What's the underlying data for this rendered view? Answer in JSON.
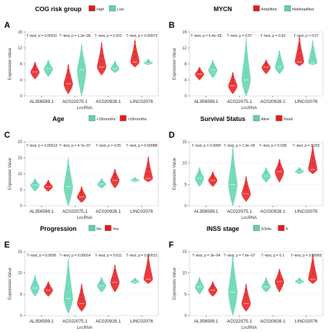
{
  "colors": {
    "red": "#e41a1c",
    "teal": "#5fd3b0",
    "axis": "#333333",
    "grid": "#eeeeee"
  },
  "chart_data": [
    {
      "type": "violin",
      "letter": "A",
      "title": "COG risk group",
      "legend": [
        "High",
        "Low"
      ],
      "xlabel": "LncRNA",
      "ylabel": "Expression Value",
      "ylim": [
        0,
        16
      ],
      "yticks": [
        0,
        4,
        8,
        12,
        16
      ],
      "categories": [
        "AL356599.1",
        "AC022075.1",
        "AC020928.1",
        "LINC02076"
      ],
      "annotations": [
        "T−test, p = 0.00011",
        "T−test, p = 1.3e−06",
        "T−test, p = 0.022",
        "T−test, p = 0.00073"
      ],
      "series": [
        {
          "name": "High",
          "medians": [
            6.0,
            3.0,
            7.2,
            8.5
          ],
          "low": [
            4.2,
            0.5,
            5.2,
            7.2
          ],
          "high": [
            8.5,
            8.0,
            13.5,
            14.2
          ]
        },
        {
          "name": "Low",
          "medians": [
            6.8,
            6.5,
            6.8,
            8.2
          ],
          "low": [
            4.8,
            0.0,
            5.8,
            7.8
          ],
          "high": [
            9.0,
            13.0,
            8.8,
            9.2
          ]
        }
      ]
    },
    {
      "type": "violin",
      "letter": "B",
      "title": "MYCN",
      "legend": [
        "Amplified",
        "NotAmplified"
      ],
      "xlabel": "LncRNA",
      "ylabel": "Expression Value",
      "ylim": [
        0,
        16
      ],
      "yticks": [
        0,
        4,
        8,
        12,
        16
      ],
      "categories": [
        "AL356599.1",
        "AC022075.1",
        "AC020928.1",
        "LINC02076"
      ],
      "annotations": [
        "T−test, p = 6.4e−05",
        "T−test, p = 0.57",
        "T−test, p = 0.93",
        "T−test, p = 0.57"
      ],
      "series": [
        {
          "name": "Amplified",
          "medians": [
            5.5,
            2.5,
            7.2,
            8.5
          ],
          "low": [
            4.0,
            0.5,
            5.5,
            7.5
          ],
          "high": [
            7.2,
            6.0,
            9.0,
            15.0
          ]
        },
        {
          "name": "NotAmplified",
          "medians": [
            6.5,
            4.0,
            7.2,
            8.2
          ],
          "low": [
            4.5,
            0.0,
            5.5,
            7.8
          ],
          "high": [
            9.0,
            14.5,
            11.5,
            14.0
          ]
        }
      ]
    },
    {
      "type": "violin",
      "letter": "C",
      "title": "Age",
      "legend": [
        "<18months",
        ">18months"
      ],
      "xlabel": "LncRNA",
      "ylabel": "Expression Value",
      "ylim": [
        0,
        20
      ],
      "yticks": [
        0,
        5,
        10,
        15,
        20
      ],
      "categories": [
        "AL356599.1",
        "AC022075.1",
        "AC020928.1",
        "LINC02076"
      ],
      "annotations": [
        "T−test, p = 0.00013",
        "T−test, p = 4.7e−07",
        "T−test, p = 0.05",
        "T−test, p = 0.00088"
      ],
      "series": [
        {
          "name": "<18months",
          "medians": [
            6.5,
            6.0,
            6.8,
            8.0
          ],
          "low": [
            4.5,
            0.0,
            5.5,
            7.5
          ],
          "high": [
            8.5,
            15.0,
            8.5,
            8.8
          ]
        },
        {
          "name": ">18months",
          "medians": [
            6.0,
            2.8,
            8.0,
            8.5
          ],
          "low": [
            4.5,
            1.0,
            5.5,
            7.5
          ],
          "high": [
            8.0,
            6.0,
            11.5,
            15.5
          ]
        }
      ]
    },
    {
      "type": "violin",
      "letter": "D",
      "title": "Survival Status",
      "legend": [
        "Alive",
        "Dead"
      ],
      "xlabel": "LncRNA",
      "ylabel": "Expression Value",
      "ylim": [
        0,
        15
      ],
      "yticks": [
        0,
        5,
        10,
        15
      ],
      "categories": [
        "AL356599.1",
        "AC022075.1",
        "AC020928.1",
        "LINC02076"
      ],
      "annotations": [
        "T−test, p = 0.0058",
        "T−test, p = 1.3e−05",
        "T−test, p = 0.038",
        "T−test, p = 0.002"
      ],
      "series": [
        {
          "name": "Alive",
          "medians": [
            6.5,
            5.0,
            7.0,
            8.0
          ],
          "low": [
            4.5,
            0.0,
            5.5,
            7.5
          ],
          "high": [
            9.0,
            14.0,
            9.0,
            9.0
          ]
        },
        {
          "name": "Dead",
          "medians": [
            6.0,
            2.8,
            8.0,
            8.5
          ],
          "low": [
            4.5,
            1.0,
            5.5,
            7.5
          ],
          "high": [
            8.0,
            7.0,
            11.0,
            14.5
          ]
        }
      ]
    },
    {
      "type": "violin",
      "letter": "E",
      "title": "Progression",
      "legend": [
        "No",
        "Yes"
      ],
      "xlabel": "LncRNA",
      "ylabel": "Expression Value",
      "ylim": [
        0,
        15
      ],
      "yticks": [
        0,
        5,
        10,
        15
      ],
      "categories": [
        "AL356599.1",
        "AC022075.1",
        "AC020928.1",
        "LINC02076"
      ],
      "annotations": [
        "T−test, p = 0.0036",
        "T−test, p = 0.00014",
        "T−test, p = 0.011",
        "T−test, p = 0.00012"
      ],
      "series": [
        {
          "name": "No",
          "medians": [
            6.5,
            4.0,
            7.0,
            8.0
          ],
          "low": [
            4.5,
            0.5,
            5.5,
            7.5
          ],
          "high": [
            9.5,
            13.5,
            9.0,
            8.8
          ]
        },
        {
          "name": "Yes",
          "medians": [
            6.0,
            2.8,
            7.8,
            8.5
          ],
          "low": [
            4.5,
            1.0,
            5.5,
            7.5
          ],
          "high": [
            8.0,
            7.5,
            12.0,
            14.5
          ]
        }
      ]
    },
    {
      "type": "violin",
      "letter": "F",
      "title": "INSS stage",
      "legend": [
        "2/3/4s",
        "4"
      ],
      "xlabel": "LncRNA",
      "ylabel": "Expression Value",
      "ylim": [
        0,
        15
      ],
      "yticks": [
        0,
        5,
        10,
        15
      ],
      "categories": [
        "AL356599.1",
        "AC022075.1",
        "AC020928.1",
        "LINC02076"
      ],
      "annotations": [
        "T−test, p = 3e−04",
        "T−test, p = 7.6e−07",
        "T−test, p = 0.1",
        "T−test, p = 0.00065"
      ],
      "series": [
        {
          "name": "2/3/4s",
          "medians": [
            6.8,
            5.5,
            6.8,
            8.0
          ],
          "low": [
            5.0,
            0.0,
            5.5,
            7.5
          ],
          "high": [
            9.0,
            14.5,
            9.0,
            8.8
          ]
        },
        {
          "name": "4",
          "medians": [
            6.0,
            2.8,
            8.0,
            8.5
          ],
          "low": [
            4.5,
            1.0,
            5.5,
            7.5
          ],
          "high": [
            8.0,
            7.5,
            11.0,
            14.5
          ]
        }
      ]
    }
  ]
}
